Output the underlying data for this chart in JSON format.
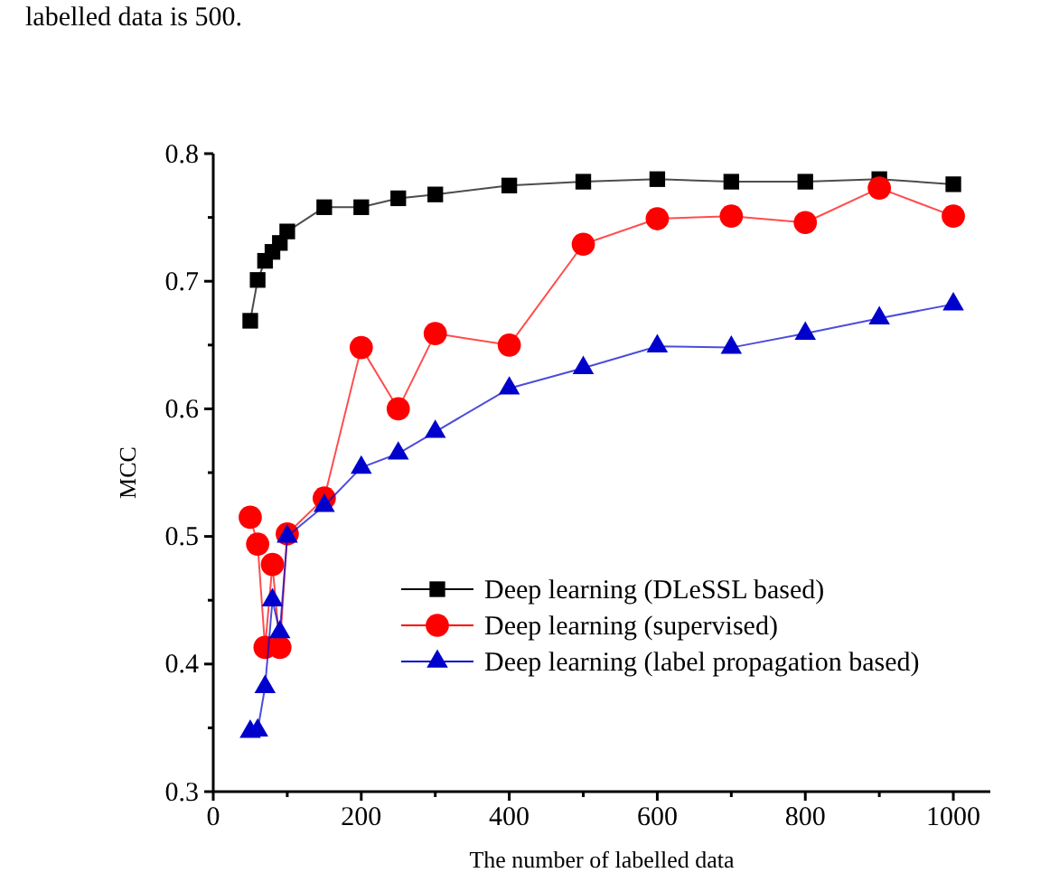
{
  "chart_data": {
    "type": "line",
    "xlabel": "The number of labelled data",
    "ylabel": "MCC",
    "annotations": [
      "labelled data is 500."
    ],
    "x": [
      50,
      60,
      70,
      80,
      90,
      100,
      150,
      200,
      250,
      300,
      400,
      500,
      600,
      700,
      800,
      900,
      1000
    ],
    "series": [
      {
        "name": "Deep learning (DLeSSL based)",
        "color": "#000000",
        "marker": "square",
        "values": [
          0.669,
          0.701,
          0.716,
          0.723,
          0.73,
          0.739,
          0.758,
          0.758,
          0.765,
          0.768,
          0.775,
          0.778,
          0.78,
          0.778,
          0.778,
          0.78,
          0.776
        ]
      },
      {
        "name": "Deep learning (supervised)",
        "color": "#ff0000",
        "marker": "circle",
        "values": [
          0.515,
          0.494,
          0.413,
          0.478,
          0.413,
          0.502,
          0.53,
          0.648,
          0.6,
          0.659,
          0.65,
          0.729,
          0.749,
          0.751,
          0.746,
          0.773,
          0.751
        ]
      },
      {
        "name": "Deep learning (label propagation based)",
        "color": "#0000cc",
        "marker": "triangle",
        "values": [
          0.347,
          0.348,
          0.382,
          0.45,
          0.425,
          0.5,
          0.524,
          0.554,
          0.565,
          0.582,
          0.616,
          0.632,
          0.649,
          0.648,
          0.659,
          0.671,
          0.682
        ]
      }
    ],
    "xlim": [
      0,
      1050
    ],
    "ylim": [
      0.3,
      0.8
    ],
    "xticks": [
      0,
      {
        "value": 100,
        "label": null
      },
      200,
      {
        "value": 300,
        "label": null
      },
      400,
      {
        "value": 500,
        "label": null
      },
      600,
      {
        "value": 700,
        "label": null
      },
      800,
      {
        "value": 900,
        "label": null
      },
      1000
    ],
    "yticks": [
      0.3,
      {
        "value": 0.35,
        "label": null
      },
      0.4,
      {
        "value": 0.45,
        "label": null
      },
      0.5,
      {
        "value": 0.55,
        "label": null
      },
      0.6,
      {
        "value": 0.65,
        "label": null
      },
      0.7,
      {
        "value": 0.75,
        "label": null
      },
      0.8
    ],
    "grid": false,
    "legend": "bottom right",
    "line_style": "solid"
  }
}
